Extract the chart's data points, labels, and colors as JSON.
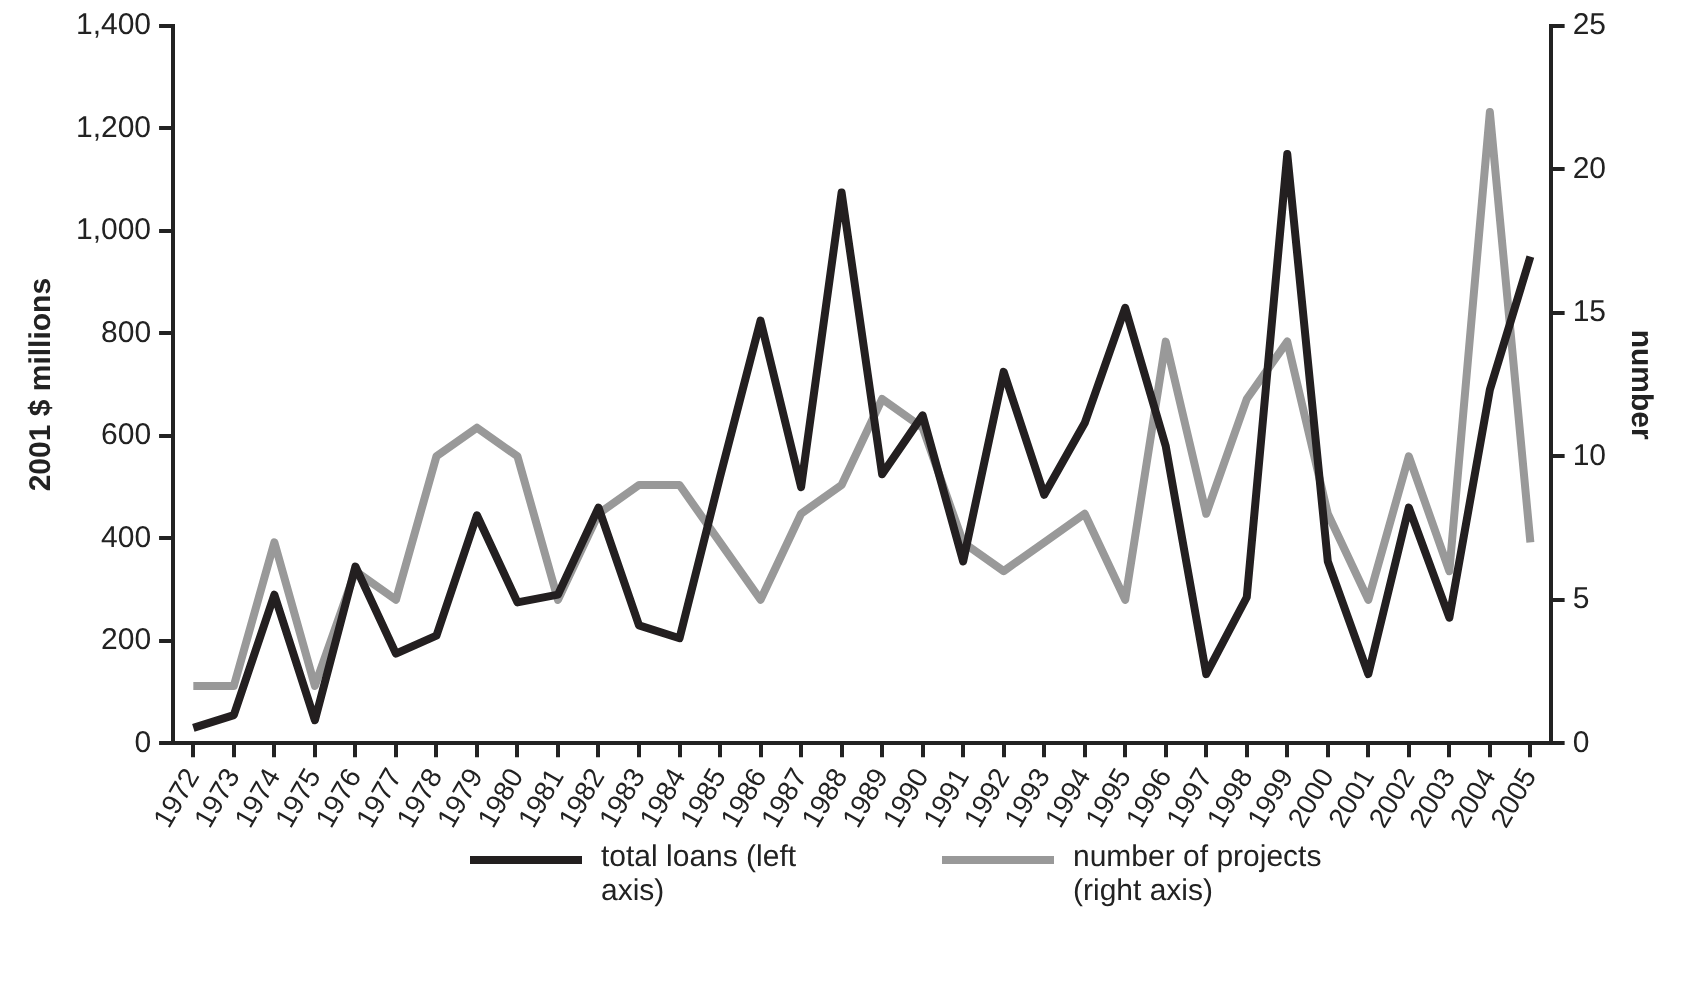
{
  "chart_data": {
    "type": "line",
    "ylabel": "2001 $ millions",
    "y2label": "number",
    "categories": [
      "1972",
      "1973",
      "1974",
      "1975",
      "1976",
      "1977",
      "1978",
      "1979",
      "1980",
      "1981",
      "1982",
      "1983",
      "1984",
      "1985",
      "1986",
      "1987",
      "1988",
      "1989",
      "1990",
      "1991",
      "1992",
      "1993",
      "1994",
      "1995",
      "1996",
      "1997",
      "1998",
      "1999",
      "2000",
      "2001",
      "2002",
      "2003",
      "2004",
      "2005"
    ],
    "series": [
      {
        "name": "total loans (left axis)",
        "color": "#231f20",
        "values": [
          30,
          55,
          290,
          45,
          345,
          175,
          210,
          445,
          275,
          290,
          460,
          230,
          205,
          520,
          825,
          500,
          1075,
          525,
          640,
          355,
          725,
          485,
          625,
          850,
          580,
          135,
          285,
          1150,
          355,
          135,
          460,
          245,
          690,
          950
        ]
      },
      {
        "name": "number of projects (right axis)",
        "color": "#999999",
        "axis": "y2",
        "values": [
          2,
          2,
          7,
          2,
          6,
          5,
          10,
          11,
          10,
          5,
          8,
          9,
          9,
          7,
          5,
          8,
          9,
          12,
          11,
          7,
          6,
          7,
          8,
          5,
          14,
          8,
          12,
          14,
          8,
          5,
          10,
          6,
          22,
          7
        ]
      }
    ],
    "ylim": [
      0,
      1400
    ],
    "yticks": [
      0,
      {
        "value": 200,
        "label": "200"
      },
      {
        "value": 400,
        "label": "400"
      },
      {
        "value": 600,
        "label": "600"
      },
      {
        "value": 800,
        "label": "800"
      },
      {
        "value": 1000,
        "label": "1,000"
      },
      {
        "value": 1200,
        "label": "1,200"
      },
      {
        "value": 1400,
        "label": "1,400"
      }
    ],
    "y2lim": [
      0,
      25
    ],
    "y2ticks": [
      0,
      5,
      10,
      15,
      20,
      25
    ],
    "grid": false,
    "legend": "bottom",
    "marker": "none",
    "line_style": "solid"
  }
}
